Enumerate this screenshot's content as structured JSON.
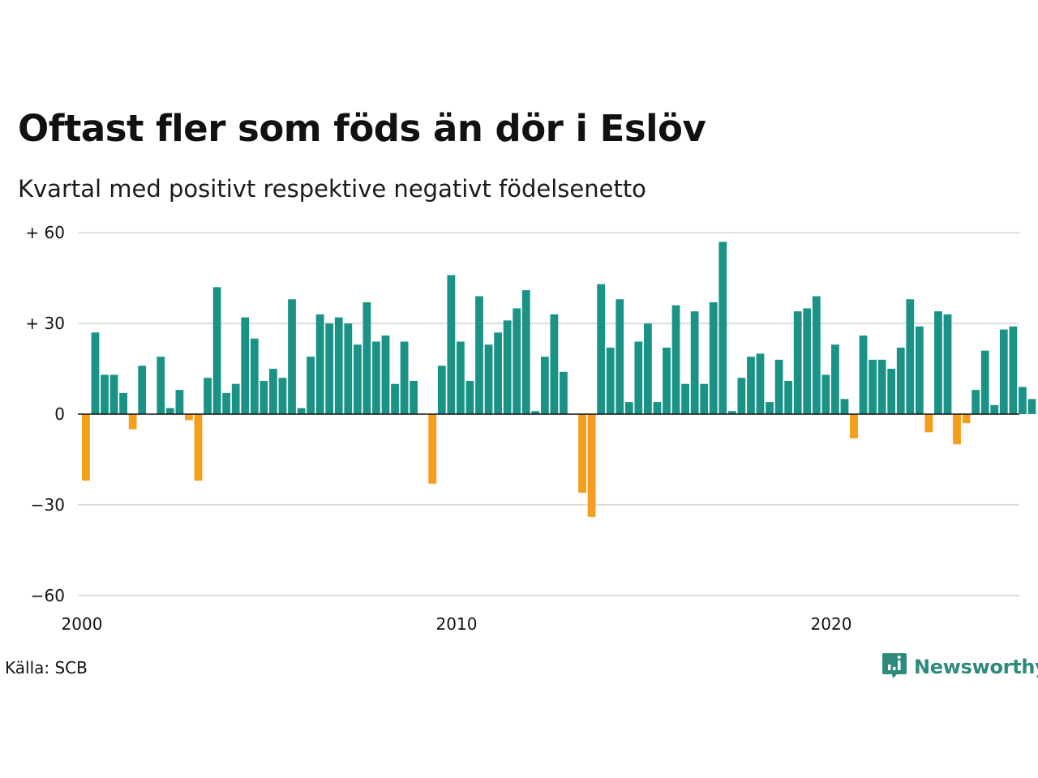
{
  "header": {
    "title": "Oftast fler som föds än dör i Eslöv",
    "subtitle": "Kvartal med positivt respektive negativt födelsenetto"
  },
  "footer": {
    "source": "Källa: SCB",
    "brand": "Newsworthy",
    "brand_icon": "newsworthy-logo-icon"
  },
  "colors": {
    "positive": "#1a9386",
    "negative": "#f59e1c",
    "grid": "#dddddd",
    "baseline": "#111111",
    "brand": "#2e8a7b"
  },
  "chart_data": {
    "type": "bar",
    "x_start": "2000 Q1",
    "x_ticks": [
      {
        "label": "2000",
        "x": 2000
      },
      {
        "label": "2010",
        "x": 2010
      },
      {
        "label": "2020",
        "x": 2020
      }
    ],
    "y_ticks": [
      {
        "label": "+ 60",
        "value": 60
      },
      {
        "label": "+ 30",
        "value": 30
      },
      {
        "label": "0",
        "value": 0
      },
      {
        "label": "−30",
        "value": -30
      },
      {
        "label": "−60",
        "value": -60
      }
    ],
    "ylim": [
      -60,
      60
    ],
    "grid": true,
    "values": [
      -22,
      27,
      13,
      13,
      7,
      -5,
      16,
      0,
      19,
      2,
      8,
      -2,
      -22,
      12,
      42,
      7,
      10,
      32,
      25,
      11,
      15,
      12,
      38,
      2,
      19,
      33,
      30,
      32,
      30,
      23,
      37,
      24,
      26,
      10,
      24,
      11,
      0,
      -23,
      16,
      46,
      24,
      11,
      39,
      23,
      27,
      31,
      35,
      41,
      1,
      19,
      33,
      14,
      0,
      -26,
      -34,
      43,
      22,
      38,
      4,
      24,
      30,
      4,
      22,
      36,
      10,
      34,
      10,
      37,
      57,
      1,
      12,
      19,
      20,
      4,
      18,
      11,
      34,
      35,
      39,
      13,
      23,
      5,
      -8,
      26,
      18,
      18,
      15,
      22,
      38,
      29,
      -6,
      34,
      33,
      -10,
      -3,
      8,
      21,
      3,
      28,
      29,
      9,
      5
    ]
  }
}
